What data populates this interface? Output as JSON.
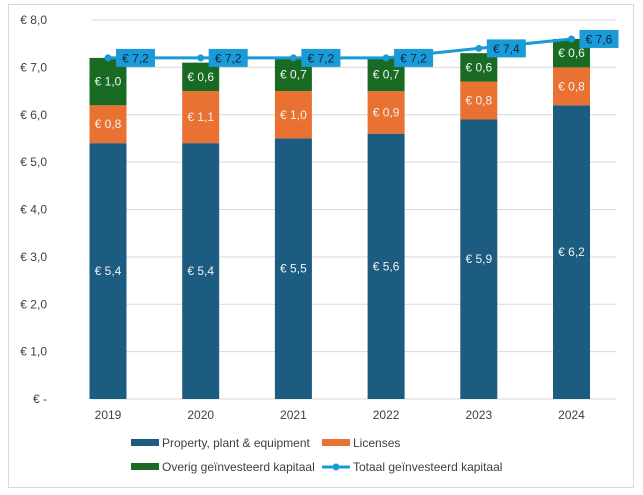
{
  "chart_data": {
    "type": "bar",
    "stacked": true,
    "title": "",
    "xlabel": "",
    "ylabel": "",
    "categories": [
      "2019",
      "2020",
      "2021",
      "2022",
      "2023",
      "2024"
    ],
    "series": [
      {
        "name": "Property, plant & equipment",
        "type": "bar",
        "color": "#1b5c80",
        "values": [
          5.4,
          5.4,
          5.5,
          5.6,
          5.9,
          6.2
        ],
        "labels": [
          "€ 5,4",
          "€ 5,4",
          "€ 5,5",
          "€ 5,6",
          "€ 5,9",
          "€ 6,2"
        ]
      },
      {
        "name": "Licenses",
        "type": "bar",
        "color": "#e97132",
        "values": [
          0.8,
          1.1,
          1.0,
          0.9,
          0.8,
          0.8
        ],
        "labels": [
          "€ 0,8",
          "€ 1,1",
          "€ 1,0",
          "€ 0,9",
          "€ 0,8",
          "€ 0,8"
        ]
      },
      {
        "name": "Overig geïnvesteerd kapitaal",
        "type": "bar",
        "color": "#196b24",
        "values": [
          1.0,
          0.6,
          0.7,
          0.7,
          0.6,
          0.6
        ],
        "labels": [
          "€ 1,0",
          "€ 0,6",
          "€ 0,7",
          "€ 0,7",
          "€ 0,6",
          "€ 0,6"
        ]
      },
      {
        "name": "Totaal geïnvesteerd kapitaal",
        "type": "line",
        "color": "#1a9ad6",
        "values": [
          7.2,
          7.2,
          7.2,
          7.2,
          7.4,
          7.6
        ],
        "labels": [
          "€ 7,2",
          "€ 7,2",
          "€ 7,2",
          "€ 7,2",
          "€ 7,4",
          "€ 7,6"
        ]
      }
    ],
    "ylim": [
      0,
      8
    ],
    "yticks": [
      0,
      1,
      2,
      3,
      4,
      5,
      6,
      7,
      8
    ],
    "ytick_labels": [
      "€ -",
      "€ 1,0",
      "€ 2,0",
      "€ 3,0",
      "€ 4,0",
      "€ 5,0",
      "€ 6,0",
      "€ 7,0",
      "€ 8,0"
    ],
    "grid": true,
    "legend": {
      "position": "bottom",
      "entries": [
        "Property, plant & equipment",
        "Licenses",
        "Overig geïnvesteerd kapitaal",
        "Totaal geïnvesteerd kapitaal"
      ]
    }
  }
}
